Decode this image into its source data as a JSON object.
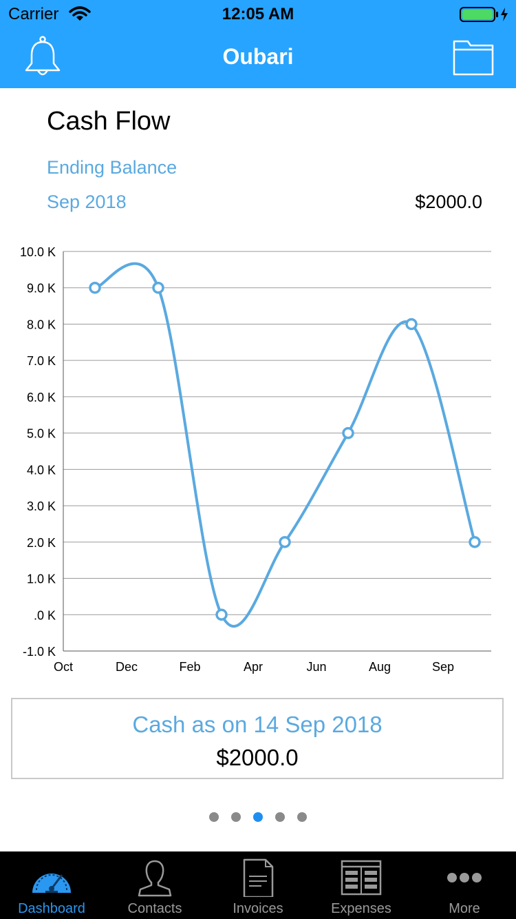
{
  "status_bar": {
    "carrier": "Carrier",
    "time": "12:05 AM"
  },
  "nav": {
    "title": "Oubari",
    "left_icon": "bell-icon",
    "right_icon": "folder-icon"
  },
  "cash_flow": {
    "title": "Cash Flow",
    "ending_balance_label": "Ending Balance",
    "period": "Sep 2018",
    "ending_balance_value": "$2000.0"
  },
  "chart_data": {
    "type": "line",
    "y_ticks": [
      "10.0 K",
      "9.0 K",
      "8.0 K",
      "7.0 K",
      "6.0 K",
      "5.0 K",
      "4.0 K",
      "3.0 K",
      "2.0 K",
      "1.0 K",
      ".0 K",
      "-1.0 K"
    ],
    "x_tick_labels": [
      "Oct",
      "Dec",
      "Feb",
      "Apr",
      "Jun",
      "Aug",
      "Sep"
    ],
    "ylim": [
      -1000,
      10000
    ],
    "grid": true,
    "series": [
      {
        "points": [
          {
            "x": 0.5,
            "y": 9000
          },
          {
            "x": 1.5,
            "y": 9000
          },
          {
            "x": 2.5,
            "y": 0
          },
          {
            "x": 3.5,
            "y": 2000
          },
          {
            "x": 4.5,
            "y": 5000
          },
          {
            "x": 5.5,
            "y": 8000
          },
          {
            "x": 6.5,
            "y": 2000
          }
        ],
        "color": "#5aa9e0"
      }
    ]
  },
  "cash_summary": {
    "label": "Cash as on 14 Sep 2018",
    "value": "$2000.0"
  },
  "pager": {
    "count": 5,
    "active_index": 2
  },
  "tabs": [
    {
      "label": "Dashboard",
      "icon": "dashboard-gauge-icon",
      "active": true
    },
    {
      "label": "Contacts",
      "icon": "contact-person-icon",
      "active": false
    },
    {
      "label": "Invoices",
      "icon": "invoice-document-icon",
      "active": false
    },
    {
      "label": "Expenses",
      "icon": "expenses-ledger-icon",
      "active": false
    },
    {
      "label": "More",
      "icon": "more-dots-icon",
      "active": false
    }
  ],
  "colors": {
    "primary": "#27a4ff",
    "accent_text": "#5aa9e0",
    "tab_active": "#2a97f0",
    "tab_inactive": "#9a9a9a"
  }
}
